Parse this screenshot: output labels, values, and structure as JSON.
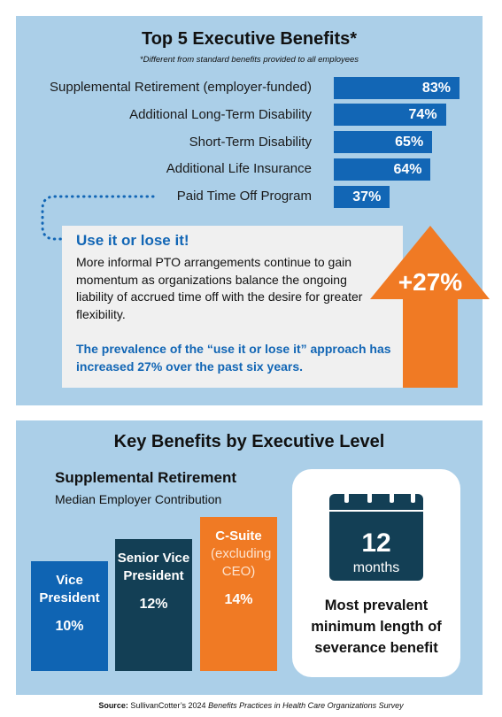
{
  "chart_data": [
    {
      "type": "hbar",
      "title": "Top 5 Executive Benefits*",
      "subtitle": "*Different from standard benefits provided to all employees",
      "categories": [
        "Supplemental Retirement (employer-funded)",
        "Additional Long-Term Disability",
        "Short-Term Disability",
        "Additional Life Insurance",
        "Paid Time Off Program"
      ],
      "values": [
        83,
        74,
        65,
        64,
        37
      ],
      "value_labels": [
        "83%",
        "74%",
        "65%",
        "64%",
        "37%"
      ],
      "color": "#1266b5",
      "xlim": [
        0,
        100
      ]
    },
    {
      "type": "bar",
      "section_title": "Key Benefits by Executive Level",
      "title": "Supplemental Retirement",
      "subtitle": "Median Employer Contribution",
      "categories": [
        "Vice President",
        "Senior Vice President",
        "C-Suite"
      ],
      "category_note": "(excluding CEO)",
      "values": [
        10,
        12,
        14
      ],
      "value_labels": [
        "10%",
        "12%",
        "14%"
      ],
      "colors": [
        "#0f64b3",
        "#133f55",
        "#f07a24"
      ]
    }
  ],
  "callout": {
    "title": "Use it or lose it!",
    "body": "More informal PTO arrangements continue to gain momentum as organizations balance the ongoing liability of accrued time off with the desire for greater flexibility.",
    "highlight": "The prevalence of the “use it or lose it” approach has increased 27% over the past six years.",
    "badge": "+27%"
  },
  "severance": {
    "number": "12",
    "unit": "months",
    "caption": "Most prevalent minimum length of severance benefit"
  },
  "source": {
    "label": "Source:",
    "text": " SullivanCotter’s 2024 ",
    "title": "Benefits Practices in Health Care Organizations Survey"
  }
}
